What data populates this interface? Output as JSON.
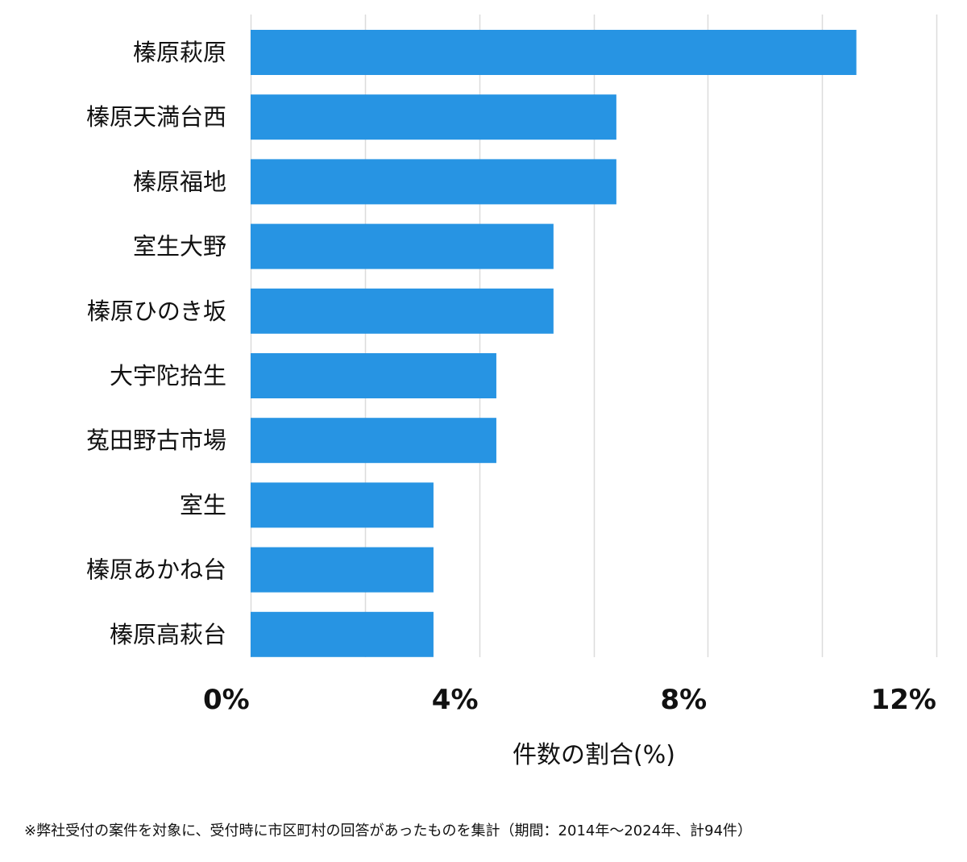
{
  "chart_data": {
    "type": "bar",
    "orientation": "horizontal",
    "categories": [
      "榛原萩原",
      "榛原天満台西",
      "榛原福地",
      "室生大野",
      "榛原ひのき坂",
      "大宇陀拾生",
      "菟田野古市場",
      "室生",
      "榛原あかね台",
      "榛原高萩台"
    ],
    "values": [
      10.6,
      6.4,
      6.4,
      5.3,
      5.3,
      4.3,
      4.3,
      3.2,
      3.2,
      3.2
    ],
    "xlim": [
      0,
      12
    ],
    "xticks": [
      0,
      4,
      8,
      12
    ],
    "xtick_labels": [
      "0%",
      "4%",
      "8%",
      "12%"
    ],
    "grid_step": 2,
    "xlabel": "件数の割合(%)",
    "ylabel": "",
    "title": "",
    "bar_color": "#2794e3",
    "grid_color": "#dcdcdc",
    "grid": true
  },
  "footnote": "※弊社受付の案件を対象に、受付時に市区町村の回答があったものを集計（期間：2014年～2024年、計94件）"
}
